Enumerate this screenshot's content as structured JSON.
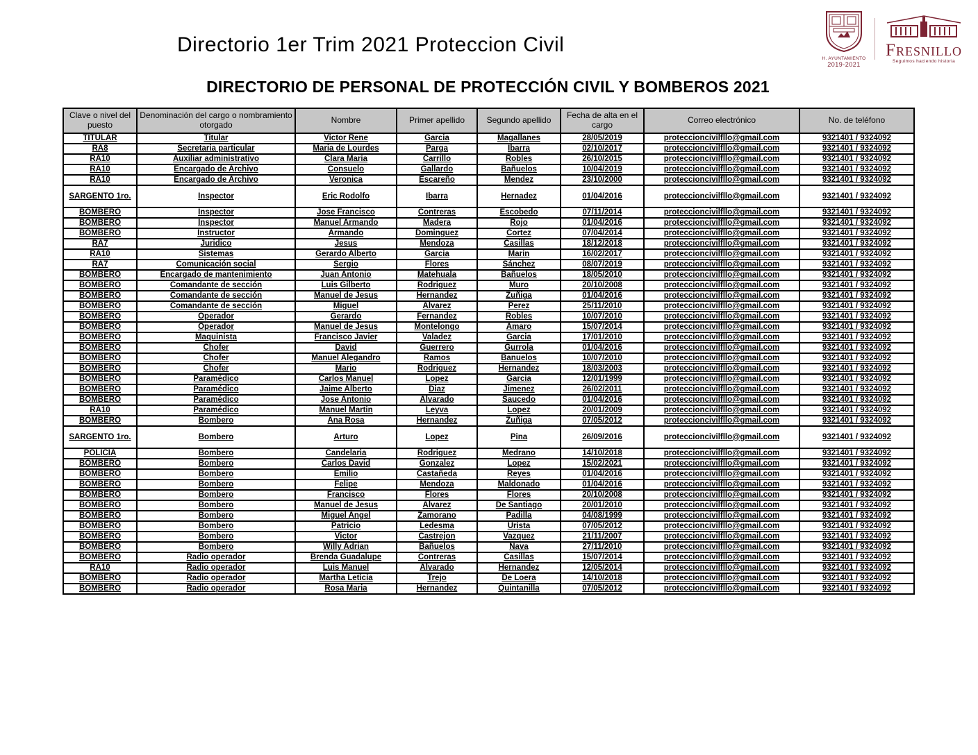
{
  "page": {
    "title": "Directorio 1er Trim 2021 Proteccion Civil",
    "subtitle": "DIRECTORIO DE PERSONAL DE PROTECCIÓN CIVIL Y BOMBEROS 2021"
  },
  "logos": {
    "brand_color": "#7d2433",
    "crest": {
      "caption": "H. AYUNTAMIENTO",
      "years": "2019-2021"
    },
    "fresnillo": {
      "wordmark": "Fresnillo",
      "tagline": "Seguimos haciendo historia"
    }
  },
  "table": {
    "columns": [
      "Clave o nivel del puesto",
      "Denominación del cargo o nombramiento otorgado",
      "Nombre",
      "Primer apellido",
      "Segundo apellido",
      "Fecha de alta en el cargo",
      "Correo electrónico",
      "No. de teléfono"
    ],
    "rows": [
      [
        "TITULAR",
        "Titular",
        "Victor Rene",
        "Garcia",
        "Magallanes",
        "28/05/2019",
        "proteccioncivilfllo@gmail.com",
        "9321401 / 9324092"
      ],
      [
        "RA8",
        "Secretaria particular",
        "Maria de Lourdes",
        "Parga",
        "Ibarra",
        "02/10/2017",
        "proteccioncivilfllo@gmail.com",
        "9321401 / 9324092"
      ],
      [
        "RA10",
        "Auxiliar administrativo",
        "Clara Maria",
        "Carrillo",
        "Robles",
        "26/10/2015",
        "proteccioncivilfllo@gmail.com",
        "9321401 / 9324092"
      ],
      [
        "RA10",
        "Encargado de Archivo",
        "Consuelo",
        "Gallardo",
        "Bañuelos",
        "10/04/2019",
        "proteccioncivilfllo@gmail.com",
        "9321401 / 9324092"
      ],
      [
        "RA10",
        "Encargado de Archivo",
        "Veronica",
        "Escareño",
        "Mendez",
        "23/10/2000",
        "proteccioncivilfllo@gmail.com",
        "9321401 / 9324092"
      ],
      [
        "SARGENTO 1ro.",
        "Inspector",
        "Eric Rodolfo",
        "Ibarra",
        "Hernadez",
        "01/04/2016",
        "proteccioncivilfllo@gmail.com",
        "9321401 / 9324092"
      ],
      [
        "BOMBERO",
        "Inspector",
        "Jose Francisco",
        "Contreras",
        "Escobedo",
        "07/11/2014",
        "proteccioncivilfllo@gmail.com",
        "9321401 / 9324092"
      ],
      [
        "BOMBERO",
        "Inspector",
        "Manuel Armando",
        "Madera",
        "Rojo",
        "01/04/2016",
        "proteccioncivilfllo@gmail.com",
        "9321401 / 9324092"
      ],
      [
        "BOMBERO",
        "Instructor",
        "Armando",
        "Dominguez",
        "Cortez",
        "07/04/2014",
        "proteccioncivilfllo@gmail.com",
        "9321401 / 9324092"
      ],
      [
        "RA7",
        "Juridico",
        "Jesus",
        "Mendoza",
        "Casillas",
        "18/12/2018",
        "proteccioncivilfllo@gmail.com",
        "9321401 / 9324092"
      ],
      [
        "RA10",
        "Sistemas",
        "Gerardo Alberto",
        "Garcia",
        "Marin",
        "16/02/2017",
        "proteccioncivilfllo@gmail.com",
        "9321401 / 9324092"
      ],
      [
        "RA7",
        "Comunicación social",
        "Sergio",
        "Flores",
        "Sánchez",
        "08/07/2019",
        "proteccioncivilfllo@gmail.com",
        "9321401 / 9324092"
      ],
      [
        "BOMBERO",
        "Encargado de mantenimiento",
        "Juan Antonio",
        "Matehuala",
        "Bañuelos",
        "18/05/2010",
        "proteccioncivilfllo@gmail.com",
        "9321401 / 9324092"
      ],
      [
        "BOMBERO",
        "Comandante de sección",
        "Luis Gilberto",
        "Rodriguez",
        "Muro",
        "20/10/2008",
        "proteccioncivilfllo@gmail.com",
        "9321401 / 9324092"
      ],
      [
        "BOMBERO",
        "Comandante de sección",
        "Manuel de Jesus",
        "Hernandez",
        "Zuñiga",
        "01/04/2016",
        "proteccioncivilfllo@gmail.com",
        "9321401 / 9324092"
      ],
      [
        "BOMBERO",
        "Comandante de sección",
        "Miguel",
        "Alvarez",
        "Perez",
        "25/11/2010",
        "proteccioncivilfllo@gmail.com",
        "9321401 / 9324092"
      ],
      [
        "BOMBERO",
        "Operador",
        "Gerardo",
        "Fernandez",
        "Robles",
        "10/07/2010",
        "proteccioncivilfllo@gmail.com",
        "9321401 / 9324092"
      ],
      [
        "BOMBERO",
        "Operador",
        "Manuel de Jesus",
        "Montelongo",
        "Amaro",
        "15/07/2014",
        "proteccioncivilfllo@gmail.com",
        "9321401 / 9324092"
      ],
      [
        "BOMBERO",
        "Maquinista",
        "Francisco Javier",
        "Valadez",
        "Garcia",
        "17/01/2010",
        "proteccioncivilfllo@gmail.com",
        "9321401 / 9324092"
      ],
      [
        "BOMBERO",
        "Chofer",
        "David",
        "Guerrero",
        "Gurrola",
        "01/04/2016",
        "proteccioncivilfllo@gmail.com",
        "9321401 / 9324092"
      ],
      [
        "BOMBERO",
        "Chofer",
        "Manuel Alegandro",
        "Ramos",
        "Banuelos",
        "10/07/2010",
        "proteccioncivilfllo@gmail.com",
        "9321401 / 9324092"
      ],
      [
        "BOMBERO",
        "Chofer",
        "Mario",
        "Rodriguez",
        "Hernandez",
        "18/03/2003",
        "proteccioncivilfllo@gmail.com",
        "9321401 / 9324092"
      ],
      [
        "BOMBERO",
        "Paramédico",
        "Carlos Manuel",
        "Lopez",
        "Garcia",
        "12/01/1999",
        "proteccioncivilfllo@gmail.com",
        "9321401 / 9324092"
      ],
      [
        "BOMBERO",
        "Paramédico",
        "Jaime Alberto",
        "Diaz",
        "Jimenez",
        "26/02/2011",
        "proteccioncivilfllo@gmail.com",
        "9321401 / 9324092"
      ],
      [
        "BOMBERO",
        "Paramédico",
        "Jose Antonio",
        "Alvarado",
        "Saucedo",
        "01/04/2016",
        "proteccioncivilfllo@gmail.com",
        "9321401 / 9324092"
      ],
      [
        "RA10",
        "Paramédico",
        "Manuel Martin",
        "Leyva",
        "Lopez",
        "20/01/2009",
        "proteccioncivilfllo@gmail.com",
        "9321401 / 9324092"
      ],
      [
        "BOMBERO",
        "Bombero",
        "Ana Rosa",
        "Hernandez",
        "Zuñiga",
        "07/05/2012",
        "proteccioncivilfllo@gmail.com",
        "9321401 / 9324092"
      ],
      [
        "SARGENTO 1ro.",
        "Bombero",
        "Arturo",
        "Lopez",
        "Pina",
        "26/09/2016",
        "proteccioncivilfllo@gmail.com",
        "9321401 / 9324092"
      ],
      [
        "POLICIA",
        "Bombero",
        "Candelaria",
        "Rodriguez",
        "Medrano",
        "14/10/2018",
        "proteccioncivilfllo@gmail.com",
        "9321401 / 9324092"
      ],
      [
        "BOMBERO",
        "Bombero",
        "Carlos David",
        "Gonzalez",
        "Lopez",
        "15/02/2021",
        "proteccioncivilfllo@gmail.com",
        "9321401 / 9324092"
      ],
      [
        "BOMBERO",
        "Bombero",
        "Emilio",
        "Castañeda",
        "Reyes",
        "01/04/2016",
        "proteccioncivilfllo@gmail.com",
        "9321401 / 9324092"
      ],
      [
        "BOMBERO",
        "Bombero",
        "Felipe",
        "Mendoza",
        "Maldonado",
        "01/04/2016",
        "proteccioncivilfllo@gmail.com",
        "9321401 / 9324092"
      ],
      [
        "BOMBERO",
        "Bombero",
        "Francisco",
        "Flores",
        "Flores",
        "20/10/2008",
        "proteccioncivilfllo@gmail.com",
        "9321401 / 9324092"
      ],
      [
        "BOMBERO",
        "Bombero",
        "Manuel de Jesus",
        "Alvarez",
        "De Santiago",
        "20/01/2010",
        "proteccioncivilfllo@gmail.com",
        "9321401 / 9324092"
      ],
      [
        "BOMBERO",
        "Bombero",
        "Miguel Angel",
        "Zamorano",
        "Padilla",
        "04/08/1999",
        "proteccioncivilfllo@gmail.com",
        "9321401 / 9324092"
      ],
      [
        "BOMBERO",
        "Bombero",
        "Patricio",
        "Ledesma",
        "Urista",
        "07/05/2012",
        "proteccioncivilfllo@gmail.com",
        "9321401 / 9324092"
      ],
      [
        "BOMBERO",
        "Bombero",
        "Victor",
        "Castrejon",
        "Vazquez",
        "21/11/2007",
        "proteccioncivilfllo@gmail.com",
        "9321401 / 9324092"
      ],
      [
        "BOMBERO",
        "Bombero",
        "Willy Adrian",
        "Bañuelos",
        "Nava",
        "27/11/2010",
        "proteccioncivilfllo@gmail.com",
        "9321401 / 9324092"
      ],
      [
        "BOMBERO",
        "Radio operador",
        "Brenda Guadalupe",
        "Contreras",
        "Casillas",
        "15/07/2014",
        "proteccioncivilfllo@gmail.com",
        "9321401 / 9324092"
      ],
      [
        "RA10",
        "Radio operador",
        "Luis Manuel",
        "Alvarado",
        "Hernandez",
        "12/05/2014",
        "proteccioncivilfllo@gmail.com",
        "9321401 / 9324092"
      ],
      [
        "BOMBERO",
        "Radio operador",
        "Martha Leticia",
        "Trejo",
        "De Loera",
        "14/10/2018",
        "proteccioncivilfllo@gmail.com",
        "9321401 / 9324092"
      ],
      [
        "BOMBERO",
        "Radio operador",
        "Rosa Maria",
        "Hernandez",
        "Quintanilla",
        "07/05/2012",
        "proteccioncivilfllo@gmail.com",
        "9321401 / 9324092"
      ]
    ]
  }
}
